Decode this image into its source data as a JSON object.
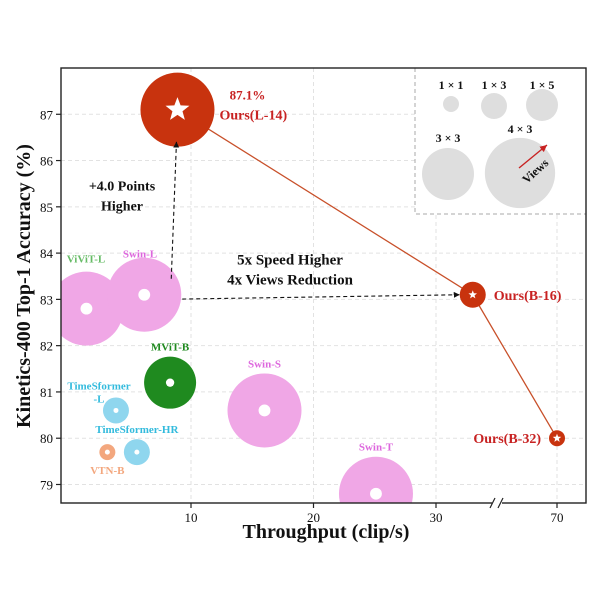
{
  "chart_data": {
    "type": "scatter",
    "title": "",
    "xlabel": "Throughput (clip/s)",
    "ylabel": "Kinetics-400 Top-1 Accuracy (%)",
    "xlim": [
      0,
      40
    ],
    "ylim": [
      78.6,
      88.0
    ],
    "x_axis_break": {
      "after": 33,
      "resume": 70
    },
    "xticks": [
      {
        "value": 10,
        "label": "10"
      },
      {
        "value": 20,
        "label": "20"
      },
      {
        "value": 30,
        "label": "30"
      },
      {
        "value": 70,
        "label": "70"
      }
    ],
    "yticks": [
      79,
      80,
      81,
      82,
      83,
      84,
      85,
      86,
      87
    ],
    "grid": true,
    "points": [
      {
        "name": "ViViT-L",
        "label": "ViViT-L",
        "x": 1.5,
        "y": 82.8,
        "views": "4 × 3",
        "color": "#f0a7e6",
        "label_color": "#66bb66",
        "label_pos": "above-left"
      },
      {
        "name": "Swin-L",
        "label": "Swin-L",
        "x": 6.2,
        "y": 83.1,
        "views": "4 × 3",
        "color": "#f0a7e6",
        "label_color": "#dd66dd",
        "label_pos": "above"
      },
      {
        "name": "MViT-B",
        "label": "MViT-B",
        "x": 8.3,
        "y": 81.2,
        "views": "3 × 3",
        "color": "#1f8a1f",
        "label_color": "#1f8a1f",
        "label_pos": "above"
      },
      {
        "name": "Swin-S",
        "label": "Swin-S",
        "x": 16.0,
        "y": 80.6,
        "views": "4 × 3",
        "color": "#f0a7e6",
        "label_color": "#dd66dd",
        "label_pos": "above"
      },
      {
        "name": "Swin-T",
        "label": "Swin-T",
        "x": 25.1,
        "y": 78.8,
        "views": "4 × 3",
        "color": "#f0a7e6",
        "label_color": "#dd66dd",
        "label_pos": "above"
      },
      {
        "name": "TimeSformer-L",
        "label": "TimeSformer",
        "label2": "-L",
        "x": 3.9,
        "y": 80.6,
        "views": "1 × 3",
        "color": "#8fd6ee",
        "label_color": "#33bbdd",
        "label_pos": "above-left"
      },
      {
        "name": "TimeSformer-HR",
        "label": "TimeSformer-HR",
        "x": 5.6,
        "y": 79.7,
        "views": "1 × 3",
        "color": "#8fd6ee",
        "label_color": "#33bbdd",
        "label_pos": "above"
      },
      {
        "name": "VTN-B",
        "label": "VTN-B",
        "x": 3.2,
        "y": 79.7,
        "views": "1 × 1",
        "color": "#f3a77e",
        "label_color": "#f3a77e",
        "label_pos": "below"
      }
    ],
    "ours": [
      {
        "name": "Ours(L-14)",
        "label": "Ours(L-14)",
        "value_label": "87.1%",
        "x": 8.9,
        "y": 87.1,
        "views": "4 × 3",
        "color": "#c8330e",
        "label_color": "#c82222",
        "label_pos": "right"
      },
      {
        "name": "Ours(B-16)",
        "label": "Ours(B-16)",
        "x": 33.0,
        "y": 83.1,
        "views": "1 × 3",
        "color": "#c8330e",
        "label_color": "#c82222",
        "label_pos": "right"
      },
      {
        "name": "Ours(B-32)",
        "label": "Ours(B-32)",
        "x": 70,
        "y": 80.0,
        "views": "1 × 1",
        "color": "#c8330e",
        "label_color": "#c82222",
        "label_pos": "left"
      }
    ],
    "annotations": [
      {
        "name": "accuracy-annotation",
        "lines": [
          "+4.0 Points",
          "Higher"
        ]
      },
      {
        "name": "speed-annotation",
        "lines": [
          "5x Speed Higher",
          "4x Views Reduction"
        ]
      }
    ],
    "legend": {
      "title": "Views",
      "placement": "top-right",
      "entries": [
        "1 × 1",
        "1 × 3",
        "1 × 5",
        "3 × 3",
        "4 × 3"
      ]
    }
  }
}
